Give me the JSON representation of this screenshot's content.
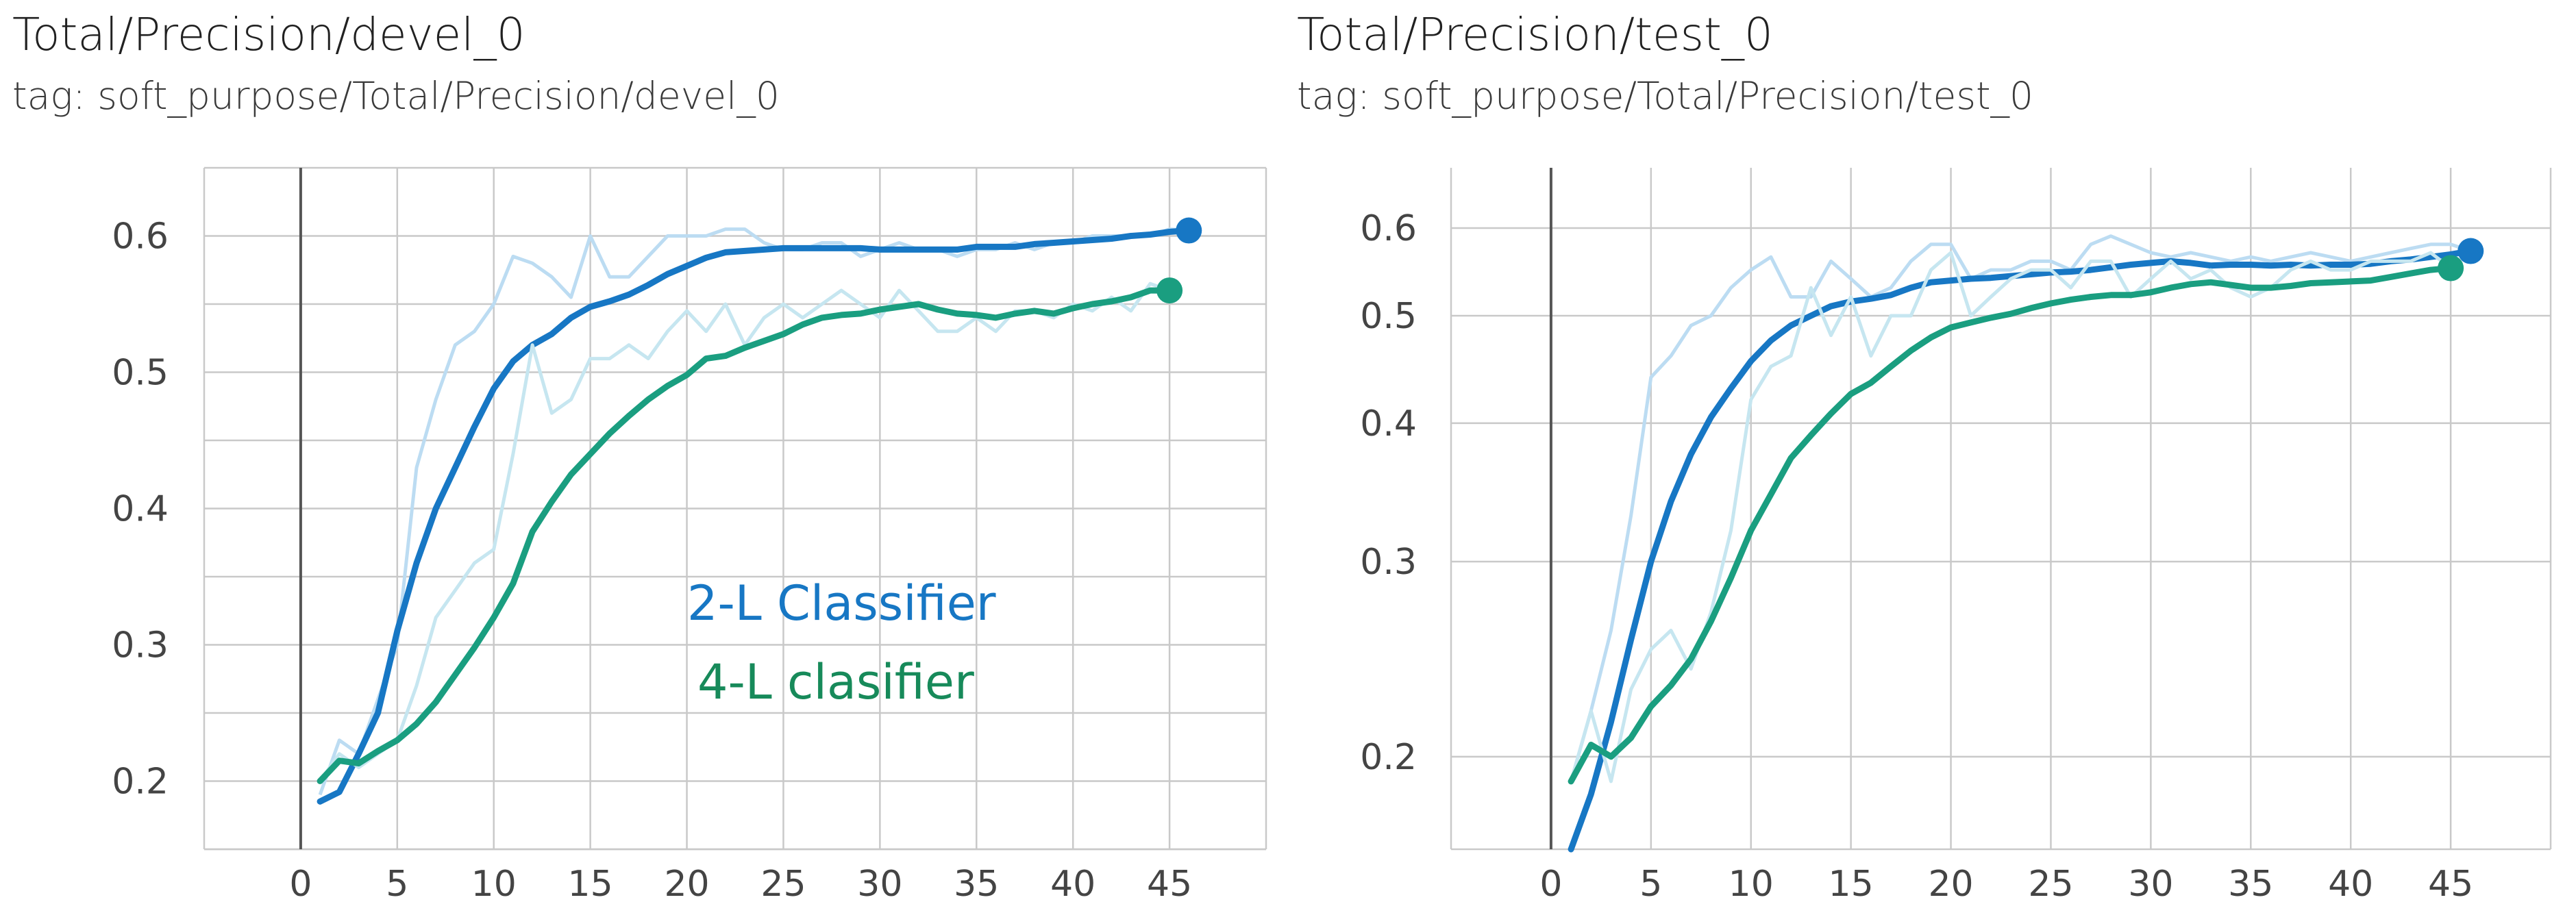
{
  "colors": {
    "blue": "#1777c4",
    "blue_light": "#bcdcf2",
    "green": "#1a9e80",
    "green_light": "#c6e6f0",
    "grid": "#c9c9c9",
    "axis": "#555555"
  },
  "annotations": {
    "two_layer": "2-L Classifier",
    "four_layer": "4-L clasifier"
  },
  "chart_data": [
    {
      "type": "line",
      "title": "Total/Precision/devel_0",
      "subtitle": "tag: soft_purpose/Total/Precision/devel_0",
      "xlabel": "",
      "ylabel": "",
      "xlim": [
        -5,
        50
      ],
      "ylim": [
        0.15,
        0.65
      ],
      "yscale": "linear",
      "x_ticks": [
        0,
        5,
        10,
        15,
        20,
        25,
        30,
        35,
        40,
        45
      ],
      "y_ticks": [
        0.2,
        0.3,
        0.4,
        0.5,
        0.6
      ],
      "grid": true,
      "legend": "none",
      "series": [
        {
          "color": "blue",
          "light_color": "blue_light",
          "x": [
            1,
            2,
            3,
            4,
            5,
            6,
            7,
            8,
            9,
            10,
            11,
            12,
            13,
            14,
            15,
            16,
            17,
            18,
            19,
            20,
            21,
            22,
            23,
            24,
            25,
            26,
            27,
            28,
            29,
            30,
            31,
            32,
            33,
            34,
            35,
            36,
            37,
            38,
            39,
            40,
            41,
            42,
            43,
            44,
            45,
            46
          ],
          "values": [
            0.185,
            0.192,
            0.22,
            0.25,
            0.31,
            0.36,
            0.4,
            0.43,
            0.46,
            0.488,
            0.508,
            0.52,
            0.528,
            0.54,
            0.548,
            0.552,
            0.557,
            0.564,
            0.572,
            0.578,
            0.584,
            0.588,
            0.589,
            0.59,
            0.591,
            0.591,
            0.591,
            0.591,
            0.591,
            0.59,
            0.59,
            0.59,
            0.59,
            0.59,
            0.592,
            0.592,
            0.592,
            0.594,
            0.595,
            0.596,
            0.597,
            0.598,
            0.6,
            0.601,
            0.603,
            0.604
          ],
          "raw": [
            0.19,
            0.23,
            0.22,
            0.26,
            0.3,
            0.43,
            0.48,
            0.52,
            0.53,
            0.55,
            0.585,
            0.58,
            0.57,
            0.555,
            0.6,
            0.57,
            0.57,
            0.585,
            0.6,
            0.6,
            0.6,
            0.605,
            0.605,
            0.595,
            0.59,
            0.59,
            0.595,
            0.595,
            0.585,
            0.59,
            0.595,
            0.59,
            0.59,
            0.585,
            0.59,
            0.59,
            0.595,
            0.59,
            0.595,
            0.595,
            0.6,
            0.6,
            0.6,
            0.6,
            0.605,
            0.604
          ]
        },
        {
          "color": "green",
          "light_color": "green_light",
          "x": [
            1,
            2,
            3,
            4,
            5,
            6,
            7,
            8,
            9,
            10,
            11,
            12,
            13,
            14,
            15,
            16,
            17,
            18,
            19,
            20,
            21,
            22,
            23,
            24,
            25,
            26,
            27,
            28,
            29,
            30,
            31,
            32,
            33,
            34,
            35,
            36,
            37,
            38,
            39,
            40,
            41,
            42,
            43,
            44,
            45
          ],
          "values": [
            0.2,
            0.215,
            0.213,
            0.222,
            0.23,
            0.242,
            0.258,
            0.278,
            0.298,
            0.32,
            0.345,
            0.383,
            0.405,
            0.425,
            0.44,
            0.455,
            0.468,
            0.48,
            0.49,
            0.498,
            0.51,
            0.512,
            0.518,
            0.523,
            0.528,
            0.535,
            0.54,
            0.542,
            0.543,
            0.546,
            0.548,
            0.55,
            0.546,
            0.543,
            0.542,
            0.54,
            0.543,
            0.545,
            0.543,
            0.547,
            0.55,
            0.552,
            0.555,
            0.56,
            0.56
          ],
          "raw": [
            0.2,
            0.22,
            0.21,
            0.22,
            0.23,
            0.27,
            0.32,
            0.34,
            0.36,
            0.37,
            0.44,
            0.52,
            0.47,
            0.48,
            0.51,
            0.51,
            0.52,
            0.51,
            0.53,
            0.545,
            0.53,
            0.55,
            0.52,
            0.54,
            0.55,
            0.54,
            0.55,
            0.56,
            0.55,
            0.54,
            0.56,
            0.545,
            0.53,
            0.53,
            0.54,
            0.53,
            0.545,
            0.545,
            0.54,
            0.55,
            0.545,
            0.555,
            0.545,
            0.565,
            0.56
          ]
        }
      ]
    },
    {
      "type": "line",
      "title": "Total/Precision/test_0",
      "subtitle": "tag: soft_purpose/Total/Precision/test_0",
      "xlabel": "",
      "ylabel": "",
      "xlim": [
        -5,
        50
      ],
      "ylim": [
        0.165,
        0.68
      ],
      "yscale": "log",
      "x_ticks": [
        0,
        5,
        10,
        15,
        20,
        25,
        30,
        35,
        40,
        45
      ],
      "y_ticks": [
        0.2,
        0.3,
        0.4,
        0.5,
        0.6
      ],
      "grid": true,
      "legend": "none",
      "series": [
        {
          "color": "blue",
          "light_color": "blue_light",
          "x": [
            1,
            2,
            3,
            4,
            5,
            6,
            7,
            8,
            9,
            10,
            11,
            12,
            13,
            14,
            15,
            16,
            17,
            18,
            19,
            20,
            21,
            22,
            23,
            24,
            25,
            26,
            27,
            28,
            29,
            30,
            31,
            32,
            33,
            34,
            35,
            36,
            37,
            38,
            39,
            40,
            41,
            42,
            43,
            44,
            45,
            46
          ],
          "values": [
            0.165,
            0.185,
            0.215,
            0.255,
            0.3,
            0.34,
            0.375,
            0.405,
            0.43,
            0.455,
            0.475,
            0.49,
            0.5,
            0.51,
            0.515,
            0.518,
            0.522,
            0.53,
            0.536,
            0.538,
            0.54,
            0.541,
            0.543,
            0.545,
            0.547,
            0.548,
            0.55,
            0.553,
            0.556,
            0.558,
            0.56,
            0.558,
            0.555,
            0.556,
            0.556,
            0.555,
            0.556,
            0.555,
            0.556,
            0.556,
            0.557,
            0.56,
            0.562,
            0.565,
            0.568,
            0.572
          ],
          "raw": [
            0.19,
            0.22,
            0.26,
            0.33,
            0.44,
            0.46,
            0.49,
            0.5,
            0.53,
            0.55,
            0.565,
            0.52,
            0.52,
            0.56,
            0.54,
            0.52,
            0.53,
            0.56,
            0.58,
            0.58,
            0.54,
            0.55,
            0.55,
            0.56,
            0.56,
            0.55,
            0.58,
            0.59,
            0.58,
            0.57,
            0.565,
            0.57,
            0.565,
            0.56,
            0.565,
            0.56,
            0.565,
            0.57,
            0.565,
            0.56,
            0.565,
            0.57,
            0.575,
            0.58,
            0.58,
            0.572
          ]
        },
        {
          "color": "green",
          "light_color": "green_light",
          "x": [
            1,
            2,
            3,
            4,
            5,
            6,
            7,
            8,
            9,
            10,
            11,
            12,
            13,
            14,
            15,
            16,
            17,
            18,
            19,
            20,
            21,
            22,
            23,
            24,
            25,
            26,
            27,
            28,
            29,
            30,
            31,
            32,
            33,
            34,
            35,
            36,
            37,
            38,
            39,
            40,
            41,
            42,
            43,
            44,
            45
          ],
          "values": [
            0.19,
            0.205,
            0.2,
            0.208,
            0.222,
            0.232,
            0.245,
            0.265,
            0.29,
            0.32,
            0.345,
            0.372,
            0.39,
            0.408,
            0.425,
            0.435,
            0.45,
            0.465,
            0.478,
            0.488,
            0.493,
            0.498,
            0.502,
            0.508,
            0.513,
            0.517,
            0.52,
            0.522,
            0.522,
            0.525,
            0.53,
            0.534,
            0.536,
            0.533,
            0.53,
            0.53,
            0.532,
            0.535,
            0.536,
            0.537,
            0.538,
            0.542,
            0.546,
            0.55,
            0.552
          ],
          "raw": [
            0.19,
            0.22,
            0.19,
            0.23,
            0.25,
            0.26,
            0.24,
            0.27,
            0.32,
            0.42,
            0.45,
            0.46,
            0.53,
            0.48,
            0.52,
            0.46,
            0.5,
            0.5,
            0.55,
            0.57,
            0.5,
            0.52,
            0.54,
            0.55,
            0.55,
            0.53,
            0.56,
            0.56,
            0.52,
            0.54,
            0.56,
            0.54,
            0.55,
            0.53,
            0.52,
            0.53,
            0.55,
            0.56,
            0.55,
            0.55,
            0.56,
            0.56,
            0.56,
            0.57,
            0.552
          ]
        }
      ]
    }
  ]
}
